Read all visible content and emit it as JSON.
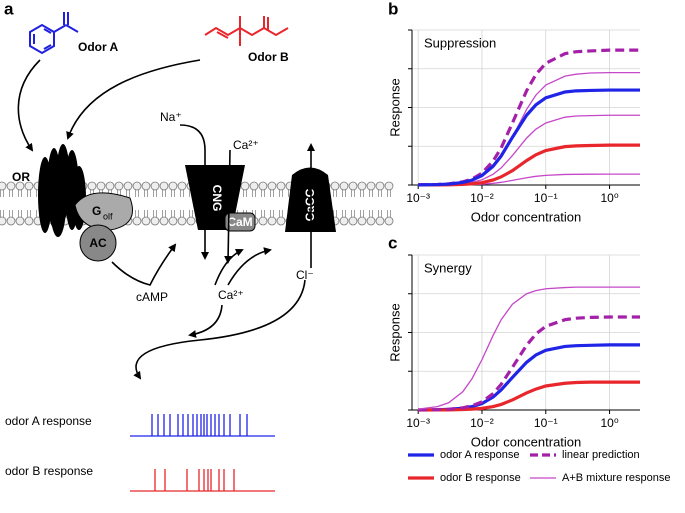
{
  "panel_labels": [
    "a",
    "b",
    "c"
  ],
  "diagram": {
    "odor_a": "Odor A",
    "odor_b": "Odor B",
    "receptor": "OR",
    "sodium": "Na⁺",
    "calcium_in": "Ca²⁺",
    "cng": "CNG",
    "cam": "CaM",
    "cacc": "CaCC",
    "g_protein": "G",
    "g_protein_sub": "olf",
    "ac": "AC",
    "camp": "cAMP",
    "calcium": "Ca²⁺",
    "chloride": "Cl⁻",
    "response_a": "odor A response",
    "response_b": "odor B response"
  },
  "chart_data": [
    {
      "type": "line",
      "title": "Suppression",
      "xlabel": "Odor concentration",
      "ylabel": "Response",
      "log_x": true,
      "grid": true,
      "xlim": [
        0.0008,
        3
      ],
      "xticks": [
        {
          "value": 0.001,
          "label": "10⁻³"
        },
        {
          "value": 0.01,
          "label": "10⁻²"
        },
        {
          "value": 0.1,
          "label": "10⁻¹"
        },
        {
          "value": 1,
          "label": "10⁰"
        }
      ],
      "ylim": [
        0,
        4
      ],
      "yticks": [
        0,
        1,
        2,
        3,
        4
      ],
      "x": [
        0.001,
        0.002,
        0.003,
        0.005,
        0.007,
        0.01,
        0.015,
        0.02,
        0.03,
        0.05,
        0.07,
        0.1,
        0.2,
        0.3,
        0.5,
        1,
        2,
        3
      ],
      "series": [
        {
          "name": "A+B mixture response",
          "color": "#c548c8",
          "style": "thin",
          "values": [
            0.002,
            0.01,
            0.02,
            0.06,
            0.11,
            0.22,
            0.45,
            0.71,
            1.23,
            1.95,
            2.32,
            2.58,
            2.81,
            2.86,
            2.89,
            2.9,
            2.9,
            2.9
          ]
        },
        {
          "name": "A+B mixture response",
          "color": "#c548c8",
          "style": "thin",
          "values": [
            0.001,
            0.006,
            0.013,
            0.036,
            0.068,
            0.135,
            0.28,
            0.44,
            0.76,
            1.21,
            1.44,
            1.6,
            1.75,
            1.78,
            1.79,
            1.8,
            1.8,
            1.8
          ]
        },
        {
          "name": "A+B mixture response",
          "color": "#c548c8",
          "style": "thin",
          "values": [
            0,
            0.001,
            0.002,
            0.006,
            0.011,
            0.021,
            0.043,
            0.069,
            0.119,
            0.188,
            0.224,
            0.249,
            0.272,
            0.276,
            0.279,
            0.28,
            0.28,
            0.28
          ]
        },
        {
          "name": "linear prediction",
          "color": "#a420a8",
          "style": "dashed",
          "values": [
            0.004,
            0.014,
            0.03,
            0.081,
            0.156,
            0.305,
            0.62,
            0.96,
            1.6,
            2.43,
            2.85,
            3.14,
            3.39,
            3.44,
            3.46,
            3.48,
            3.48,
            3.48
          ]
        },
        {
          "name": "odor B response",
          "color": "#e8262b",
          "style": "solid",
          "values": [
            0.001,
            0.003,
            0.006,
            0.015,
            0.03,
            0.06,
            0.13,
            0.21,
            0.37,
            0.63,
            0.78,
            0.89,
            0.99,
            1.01,
            1.02,
            1.03,
            1.03,
            1.03
          ]
        },
        {
          "name": "odor A response",
          "color": "#1f24e6",
          "style": "solid",
          "values": [
            0.003,
            0.011,
            0.024,
            0.066,
            0.126,
            0.245,
            0.49,
            0.75,
            1.23,
            1.8,
            2.07,
            2.25,
            2.4,
            2.43,
            2.44,
            2.45,
            2.45,
            2.45
          ]
        }
      ]
    },
    {
      "type": "line",
      "title": "Synergy",
      "xlabel": "Odor concentration",
      "ylabel": "Response",
      "log_x": true,
      "grid": true,
      "xlim": [
        0.0008,
        3
      ],
      "xticks": [
        {
          "value": 0.001,
          "label": "10⁻³"
        },
        {
          "value": 0.01,
          "label": "10⁻²"
        },
        {
          "value": 0.1,
          "label": "10⁻¹"
        },
        {
          "value": 1,
          "label": "10⁰"
        }
      ],
      "ylim": [
        0,
        4
      ],
      "yticks": [
        0,
        1,
        2,
        3,
        4
      ],
      "x": [
        0.001,
        0.002,
        0.003,
        0.005,
        0.007,
        0.01,
        0.015,
        0.02,
        0.03,
        0.05,
        0.07,
        0.1,
        0.2,
        0.3,
        0.5,
        1,
        2,
        3
      ],
      "series": [
        {
          "name": "odor A response",
          "color": "#1f24e6",
          "style": "solid",
          "values": [
            0.002,
            0.007,
            0.017,
            0.045,
            0.087,
            0.168,
            0.336,
            0.52,
            0.84,
            1.23,
            1.42,
            1.54,
            1.64,
            1.66,
            1.67,
            1.68,
            1.68,
            1.68
          ]
        },
        {
          "name": "odor B response",
          "color": "#e8262b",
          "style": "solid",
          "values": [
            0,
            0.002,
            0.004,
            0.011,
            0.022,
            0.042,
            0.089,
            0.144,
            0.26,
            0.44,
            0.54,
            0.62,
            0.69,
            0.71,
            0.72,
            0.72,
            0.72,
            0.72
          ]
        },
        {
          "name": "linear prediction",
          "color": "#a420a8",
          "style": "dashed",
          "values": [
            0.002,
            0.009,
            0.021,
            0.056,
            0.109,
            0.21,
            0.425,
            0.664,
            1.1,
            1.67,
            1.96,
            2.16,
            2.33,
            2.37,
            2.39,
            2.4,
            2.4,
            2.4
          ]
        },
        {
          "name": "A+B mixture response",
          "color": "#c548c8",
          "style": "thin",
          "values": [
            0.022,
            0.086,
            0.187,
            0.47,
            0.81,
            1.3,
            1.93,
            2.33,
            2.73,
            3.0,
            3.08,
            3.13,
            3.16,
            3.17,
            3.17,
            3.17,
            3.17,
            3.17
          ]
        }
      ]
    }
  ]
}
